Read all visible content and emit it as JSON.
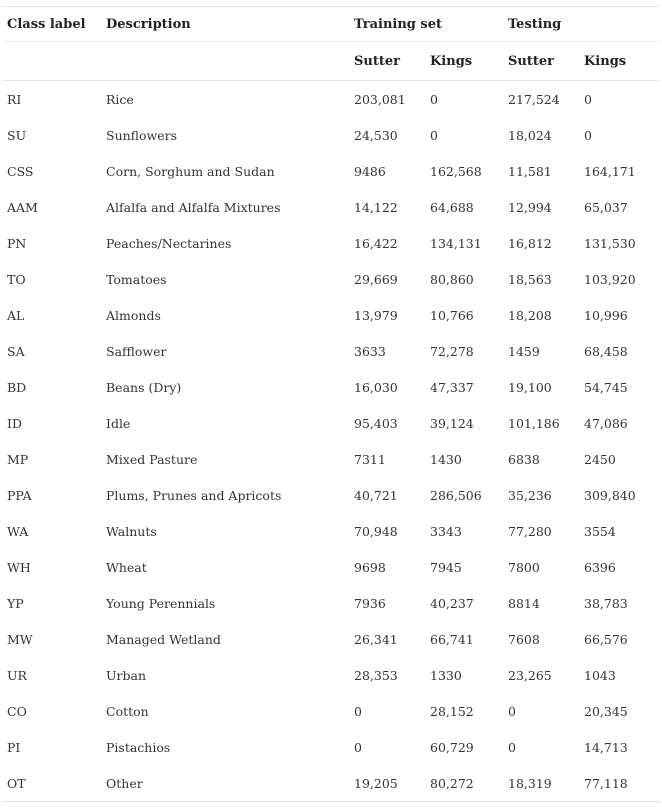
{
  "headers": {
    "class_label": "Class label",
    "description": "Description",
    "training_set": "Training set",
    "testing": "Testing",
    "sutter": "Sutter",
    "kings": "Kings"
  },
  "rows": [
    {
      "label": "RI",
      "desc": "Rice",
      "tr_sutter": "203,081",
      "tr_kings": "0",
      "te_sutter": "217,524",
      "te_kings": "0"
    },
    {
      "label": "SU",
      "desc": "Sunflowers",
      "tr_sutter": "24,530",
      "tr_kings": "0",
      "te_sutter": "18,024",
      "te_kings": "0"
    },
    {
      "label": "CSS",
      "desc": "Corn, Sorghum and Sudan",
      "tr_sutter": "9486",
      "tr_kings": "162,568",
      "te_sutter": "11,581",
      "te_kings": "164,171"
    },
    {
      "label": "AAM",
      "desc": "Alfalfa and Alfalfa Mixtures",
      "tr_sutter": "14,122",
      "tr_kings": "64,688",
      "te_sutter": "12,994",
      "te_kings": "65,037"
    },
    {
      "label": "PN",
      "desc": "Peaches/Nectarines",
      "tr_sutter": "16,422",
      "tr_kings": "134,131",
      "te_sutter": "16,812",
      "te_kings": "131,530"
    },
    {
      "label": "TO",
      "desc": "Tomatoes",
      "tr_sutter": "29,669",
      "tr_kings": "80,860",
      "te_sutter": "18,563",
      "te_kings": "103,920"
    },
    {
      "label": "AL",
      "desc": "Almonds",
      "tr_sutter": "13,979",
      "tr_kings": "10,766",
      "te_sutter": "18,208",
      "te_kings": "10,996"
    },
    {
      "label": "SA",
      "desc": "Safflower",
      "tr_sutter": "3633",
      "tr_kings": "72,278",
      "te_sutter": "1459",
      "te_kings": "68,458"
    },
    {
      "label": "BD",
      "desc": "Beans (Dry)",
      "tr_sutter": "16,030",
      "tr_kings": "47,337",
      "te_sutter": "19,100",
      "te_kings": "54,745"
    },
    {
      "label": "ID",
      "desc": "Idle",
      "tr_sutter": "95,403",
      "tr_kings": "39,124",
      "te_sutter": "101,186",
      "te_kings": "47,086"
    },
    {
      "label": "MP",
      "desc": "Mixed Pasture",
      "tr_sutter": "7311",
      "tr_kings": "1430",
      "te_sutter": "6838",
      "te_kings": "2450"
    },
    {
      "label": "PPA",
      "desc": "Plums, Prunes and Apricots",
      "tr_sutter": "40,721",
      "tr_kings": "286,506",
      "te_sutter": "35,236",
      "te_kings": "309,840"
    },
    {
      "label": "WA",
      "desc": "Walnuts",
      "tr_sutter": "70,948",
      "tr_kings": "3343",
      "te_sutter": "77,280",
      "te_kings": "3554"
    },
    {
      "label": "WH",
      "desc": "Wheat",
      "tr_sutter": "9698",
      "tr_kings": "7945",
      "te_sutter": "7800",
      "te_kings": "6396"
    },
    {
      "label": "YP",
      "desc": "Young Perennials",
      "tr_sutter": "7936",
      "tr_kings": "40,237",
      "te_sutter": "8814",
      "te_kings": "38,783"
    },
    {
      "label": "MW",
      "desc": "Managed Wetland",
      "tr_sutter": "26,341",
      "tr_kings": "66,741",
      "te_sutter": "7608",
      "te_kings": "66,576"
    },
    {
      "label": "UR",
      "desc": "Urban",
      "tr_sutter": "28,353",
      "tr_kings": "1330",
      "te_sutter": "23,265",
      "te_kings": "1043"
    },
    {
      "label": "CO",
      "desc": "Cotton",
      "tr_sutter": "0",
      "tr_kings": "28,152",
      "te_sutter": "0",
      "te_kings": "20,345"
    },
    {
      "label": "PI",
      "desc": "Pistachios",
      "tr_sutter": "0",
      "tr_kings": "60,729",
      "te_sutter": "0",
      "te_kings": "14,713"
    },
    {
      "label": "OT",
      "desc": "Other",
      "tr_sutter": "19,205",
      "tr_kings": "80,272",
      "te_sutter": "18,319",
      "te_kings": "77,118"
    }
  ]
}
